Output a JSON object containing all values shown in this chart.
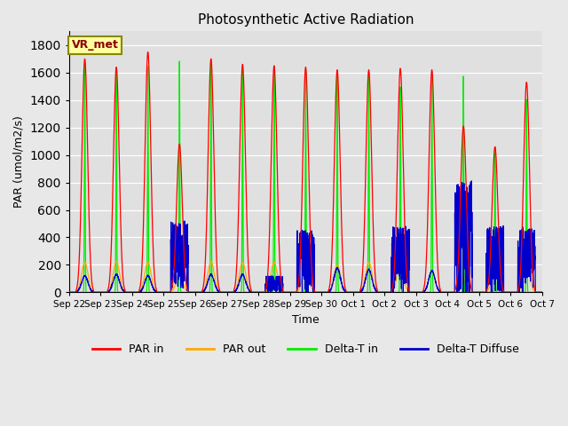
{
  "title": "Photosynthetic Active Radiation",
  "ylabel": "PAR (umol/m2/s)",
  "xlabel": "Time",
  "annotation": "VR_met",
  "ylim": [
    0,
    1900
  ],
  "yticks": [
    0,
    200,
    400,
    600,
    800,
    1000,
    1200,
    1400,
    1600,
    1800
  ],
  "fig_bg_color": "#e8e8e8",
  "plot_bg_color": "#e0e0e0",
  "legend_labels": [
    "PAR in",
    "PAR out",
    "Delta-T in",
    "Delta-T Diffuse"
  ],
  "legend_colors": [
    "#ff0000",
    "#ffaa00",
    "#00ee00",
    "#0000cc"
  ],
  "series_colors": {
    "par_in": "#ff0000",
    "par_out": "#ffaa00",
    "delta_t_in": "#00ee00",
    "delta_t_diffuse": "#0000cc"
  },
  "x_tick_labels": [
    "Sep 22",
    "Sep 23",
    "Sep 24",
    "Sep 25",
    "Sep 26",
    "Sep 27",
    "Sep 28",
    "Sep 29",
    "Sep 30",
    "Oct 1",
    "Oct 2",
    "Oct 3",
    "Oct 4",
    "Oct 5",
    "Oct 6",
    "Oct 7"
  ],
  "num_days": 15,
  "points_per_day": 288,
  "par_in_peaks": [
    1700,
    1640,
    1750,
    1080,
    1700,
    1660,
    1650,
    1640,
    1620,
    1620,
    1630,
    1620,
    1210,
    1060,
    1530
  ],
  "par_out_peaks": [
    220,
    225,
    220,
    140,
    225,
    220,
    220,
    200,
    200,
    220,
    215,
    155,
    110,
    180,
    210
  ],
  "delta_t_peaks": [
    1680,
    1640,
    1660,
    1700,
    1680,
    1630,
    1625,
    1620,
    1600,
    1610,
    1510,
    1600,
    1590,
    1060,
    1420
  ],
  "diffuse_peaks": [
    120,
    130,
    120,
    450,
    130,
    130,
    105,
    400,
    175,
    165,
    420,
    155,
    715,
    425,
    415
  ],
  "diffuse_noisy": [
    false,
    false,
    false,
    true,
    false,
    false,
    true,
    true,
    false,
    false,
    true,
    false,
    true,
    true,
    true
  ]
}
